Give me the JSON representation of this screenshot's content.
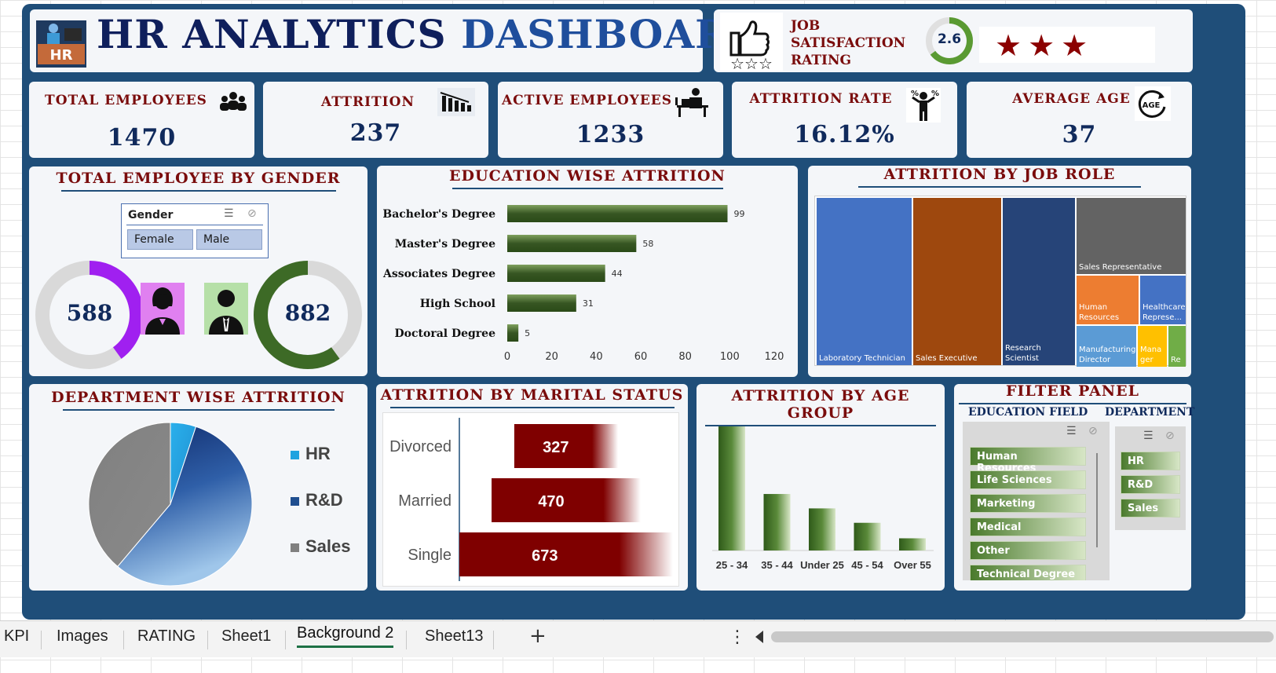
{
  "header": {
    "title_part1": "HR ANALYTICS",
    "title_part2": "DASHBOARD",
    "logo_text": "HR",
    "rating_label_line1": "JOB",
    "rating_label_line2": "SATISFACTION",
    "rating_label_line3": "RATING",
    "rating_value": "2.6",
    "rating_fraction": 0.65,
    "stars_shown": 3
  },
  "kpis": [
    {
      "label": "TOTAL EMPLOYEES",
      "value": "1470",
      "icon": "people-group-icon"
    },
    {
      "label": "ATTRITION",
      "value": "237",
      "icon": "decline-people-icon"
    },
    {
      "label": "ACTIVE EMPLOYEES",
      "value": "1233",
      "icon": "desk-worker-icon"
    },
    {
      "label": "ATTRITION RATE",
      "value": "16.12%",
      "icon": "person-percent-icon"
    },
    {
      "label": "AVERAGE AGE",
      "value": "37",
      "icon": "age-cycle-icon"
    }
  ],
  "gender": {
    "title": "TOTAL EMPLOYEE BY GENDER",
    "slicer_title": "Gender",
    "options": [
      "Female",
      "Male"
    ],
    "female_value": "588",
    "male_value": "882",
    "female_fraction": 0.4,
    "male_fraction": 0.6,
    "colors": {
      "female": "#a020f0",
      "male": "#3d6a26",
      "track": "#d9d9d9"
    }
  },
  "chart_data": [
    {
      "type": "bar",
      "orientation": "horizontal",
      "title": "EDUCATION WISE ATTRITION",
      "categories": [
        "Bachelor's Degree",
        "Master's Degree",
        "Associates Degree",
        "High School",
        "Doctoral Degree"
      ],
      "values": [
        99,
        58,
        44,
        31,
        5
      ],
      "xlim": [
        0,
        120
      ],
      "xticks": [
        0,
        20,
        40,
        60,
        80,
        100,
        120
      ],
      "color": "#375623"
    },
    {
      "type": "treemap",
      "title": "ATTRITION BY JOB ROLE",
      "categories": [
        "Laboratory Technician",
        "Sales Executive",
        "Research Scientist",
        "Sales Representative",
        "Human Resources",
        "Healthcare Represe...",
        "Manufacturing Director",
        "Mana ger",
        "Re"
      ],
      "values": [
        62,
        57,
        47,
        33,
        12,
        9,
        10,
        5,
        3
      ],
      "colors": [
        "#4472c4",
        "#9e480e",
        "#264478",
        "#636363",
        "#ed7d31",
        "#4472c4",
        "#5b9bd5",
        "#ffc000",
        "#70ad47"
      ]
    },
    {
      "type": "pie",
      "title": "DEPARTMENT WISE ATTRITION",
      "categories": [
        "HR",
        "R&D",
        "Sales"
      ],
      "values": [
        12,
        133,
        92
      ],
      "colors": [
        "#1fa3e0",
        "#1f4e8f",
        "#808080"
      ]
    },
    {
      "type": "bar",
      "orientation": "horizontal",
      "title": "ATTRITION BY MARITAL STATUS",
      "categories": [
        "Divorced",
        "Married",
        "Single"
      ],
      "values": [
        327,
        470,
        673
      ],
      "color": "#7f0000"
    },
    {
      "type": "bar",
      "orientation": "vertical",
      "title": "ATTRITION BY AGE GROUP",
      "categories": [
        "25 - 34",
        "35 - 44",
        "Under 25",
        "45 - 54",
        "Over 55"
      ],
      "values": [
        112,
        51,
        38,
        25,
        11
      ],
      "color": "#375623"
    }
  ],
  "filter_panel": {
    "title": "FILTER PANEL",
    "education_field_title": "EDUCATION FIELD",
    "department_title": "DEPARTMENT",
    "education_fields": [
      "Human Resources",
      "Life Sciences",
      "Marketing",
      "Medical",
      "Other",
      "Technical Degree"
    ],
    "departments": [
      "HR",
      "R&D",
      "Sales"
    ]
  },
  "sheet_tabs": {
    "tabs": [
      "KPI",
      "Images",
      "RATING",
      "Sheet1",
      "Background 2",
      "Sheet13"
    ],
    "active": "Background 2",
    "add_symbol": "+",
    "more_symbol": "⋮"
  }
}
